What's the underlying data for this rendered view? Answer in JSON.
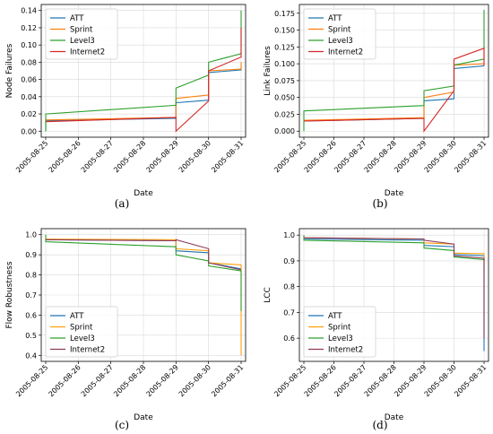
{
  "chart_data": [
    {
      "type": "line",
      "caption": "(a)",
      "xlabel": "Date",
      "ylabel": "Node Failures",
      "ylim": [
        -0.007,
        0.147
      ],
      "yticks": [
        "0.00",
        "0.02",
        "0.04",
        "0.06",
        "0.08",
        "0.10",
        "0.12",
        "0.14"
      ],
      "ytick_values": [
        0,
        0.02,
        0.04,
        0.06,
        0.08,
        0.1,
        0.12,
        0.14
      ],
      "xticks": [
        "2005-08-25",
        "2005-08-26",
        "2005-08-27",
        "2005-08-28",
        "2005-08-29",
        "2005-08-30",
        "2005-08-31"
      ],
      "grid": true,
      "legend_position": "upper-left",
      "series": [
        {
          "name": "ATT",
          "color": "#1f77b4",
          "x": [
            0,
            0,
            4,
            4,
            5,
            5,
            6,
            6
          ],
          "y": [
            0.0,
            0.012,
            0.015,
            0.033,
            0.036,
            0.068,
            0.071,
            0.075
          ]
        },
        {
          "name": "Sprint",
          "color": "#ff7f0e",
          "x": [
            0,
            4,
            4,
            5,
            5,
            6,
            6
          ],
          "y": [
            0.013,
            0.016,
            0.038,
            0.042,
            0.07,
            0.072,
            0.08
          ]
        },
        {
          "name": "Level3",
          "color": "#2ca02c",
          "x": [
            0,
            0,
            4,
            4,
            5,
            5,
            6,
            6
          ],
          "y": [
            0.0,
            0.02,
            0.03,
            0.05,
            0.065,
            0.08,
            0.09,
            0.14
          ]
        },
        {
          "name": "Internet2",
          "color": "#d62728",
          "x": [
            0,
            4,
            4,
            5,
            5,
            6,
            6
          ],
          "y": [
            0.011,
            0.016,
            0.0,
            0.035,
            0.07,
            0.086,
            0.12
          ]
        }
      ]
    },
    {
      "type": "line",
      "caption": "(b)",
      "xlabel": "Date",
      "ylabel": "Link Failures",
      "ylim": [
        -0.009,
        0.188
      ],
      "yticks": [
        "0.000",
        "0.025",
        "0.050",
        "0.075",
        "0.100",
        "0.125",
        "0.150",
        "0.175"
      ],
      "ytick_values": [
        0,
        0.025,
        0.05,
        0.075,
        0.1,
        0.125,
        0.15,
        0.175
      ],
      "xticks": [
        "2005-08-25",
        "2005-08-26",
        "2005-08-27",
        "2005-08-28",
        "2005-08-29",
        "2005-08-30",
        "2005-08-31"
      ],
      "grid": true,
      "legend_position": "upper-left",
      "series": [
        {
          "name": "ATT",
          "color": "#1f77b4",
          "x": [
            0,
            4,
            4,
            5,
            5,
            6
          ],
          "y": [
            0.015,
            0.019,
            0.045,
            0.048,
            0.093,
            0.097
          ]
        },
        {
          "name": "Sprint",
          "color": "#ff7f0e",
          "x": [
            0,
            4,
            4,
            5,
            5,
            6,
            6
          ],
          "y": [
            0.016,
            0.02,
            0.05,
            0.058,
            0.098,
            0.1,
            0.103
          ]
        },
        {
          "name": "Level3",
          "color": "#2ca02c",
          "x": [
            0,
            0,
            4,
            4,
            5,
            5,
            6,
            6
          ],
          "y": [
            0.0,
            0.03,
            0.038,
            0.06,
            0.067,
            0.098,
            0.107,
            0.18
          ]
        },
        {
          "name": "Internet2",
          "color": "#d62728",
          "x": [
            0,
            4,
            4,
            5,
            5,
            6,
            6
          ],
          "y": [
            0.015,
            0.019,
            0.0,
            0.06,
            0.107,
            0.123,
            0.097
          ]
        }
      ]
    },
    {
      "type": "line",
      "caption": "(c)",
      "xlabel": "Date",
      "ylabel": "Flow Robustness",
      "ylim": [
        0.37,
        1.03
      ],
      "yticks": [
        "0.4",
        "0.5",
        "0.6",
        "0.7",
        "0.8",
        "0.9",
        "1.0"
      ],
      "ytick_values": [
        0.4,
        0.5,
        0.6,
        0.7,
        0.8,
        0.9,
        1.0
      ],
      "xticks": [
        "2005-08-25",
        "2005-08-26",
        "2005-08-27",
        "2005-08-28",
        "2005-08-29",
        "2005-08-30",
        "2005-08-31"
      ],
      "grid": true,
      "legend_position": "lower-left",
      "series": [
        {
          "name": "ATT",
          "color": "#1f77b4",
          "x": [
            0,
            4,
            4,
            5,
            5,
            6
          ],
          "y": [
            0.975,
            0.97,
            0.92,
            0.91,
            0.86,
            0.83
          ]
        },
        {
          "name": "Sprint",
          "color": "#ff9f0e",
          "x": [
            0,
            4,
            4,
            5,
            5,
            6,
            6
          ],
          "y": [
            0.978,
            0.975,
            0.93,
            0.92,
            0.86,
            0.85,
            0.4
          ]
        },
        {
          "name": "Level3",
          "color": "#2ca02c",
          "x": [
            0,
            0,
            4,
            4,
            5,
            5,
            6,
            6
          ],
          "y": [
            1.0,
            0.965,
            0.94,
            0.9,
            0.87,
            0.845,
            0.82,
            0.62
          ]
        },
        {
          "name": "Internet2",
          "color": "#8c3a5c",
          "x": [
            0,
            4,
            4,
            5,
            5,
            6
          ],
          "y": [
            0.975,
            0.97,
            0.975,
            0.93,
            0.86,
            0.825
          ]
        }
      ]
    },
    {
      "type": "line",
      "caption": "(d)",
      "xlabel": "Date",
      "ylabel": "LCC",
      "ylim": [
        0.51,
        1.025
      ],
      "yticks": [
        "0.6",
        "0.7",
        "0.8",
        "0.9",
        "1.0"
      ],
      "ytick_values": [
        0.6,
        0.7,
        0.8,
        0.9,
        1.0
      ],
      "xticks": [
        "2005-08-25",
        "2005-08-26",
        "2005-08-27",
        "2005-08-28",
        "2005-08-29",
        "2005-08-30",
        "2005-08-31"
      ],
      "grid": true,
      "legend_position": "lower-left",
      "series": [
        {
          "name": "ATT",
          "color": "#1f77b4",
          "x": [
            0,
            4,
            4,
            5,
            5,
            6,
            6
          ],
          "y": [
            0.985,
            0.98,
            0.96,
            0.955,
            0.925,
            0.92,
            0.55
          ]
        },
        {
          "name": "Sprint",
          "color": "#ff9f0e",
          "x": [
            0,
            4,
            4,
            5,
            5,
            6,
            6
          ],
          "y": [
            0.99,
            0.985,
            0.97,
            0.965,
            0.93,
            0.928,
            0.85
          ]
        },
        {
          "name": "Level3",
          "color": "#2ca02c",
          "x": [
            0,
            0,
            4,
            4,
            5,
            5,
            6,
            6
          ],
          "y": [
            1.0,
            0.98,
            0.97,
            0.95,
            0.94,
            0.915,
            0.905,
            0.9
          ]
        },
        {
          "name": "Internet2",
          "color": "#8c3a5c",
          "x": [
            0,
            4,
            4,
            5,
            5,
            6,
            6
          ],
          "y": [
            0.99,
            0.985,
            0.98,
            0.965,
            0.92,
            0.91,
            0.6
          ]
        }
      ]
    }
  ]
}
